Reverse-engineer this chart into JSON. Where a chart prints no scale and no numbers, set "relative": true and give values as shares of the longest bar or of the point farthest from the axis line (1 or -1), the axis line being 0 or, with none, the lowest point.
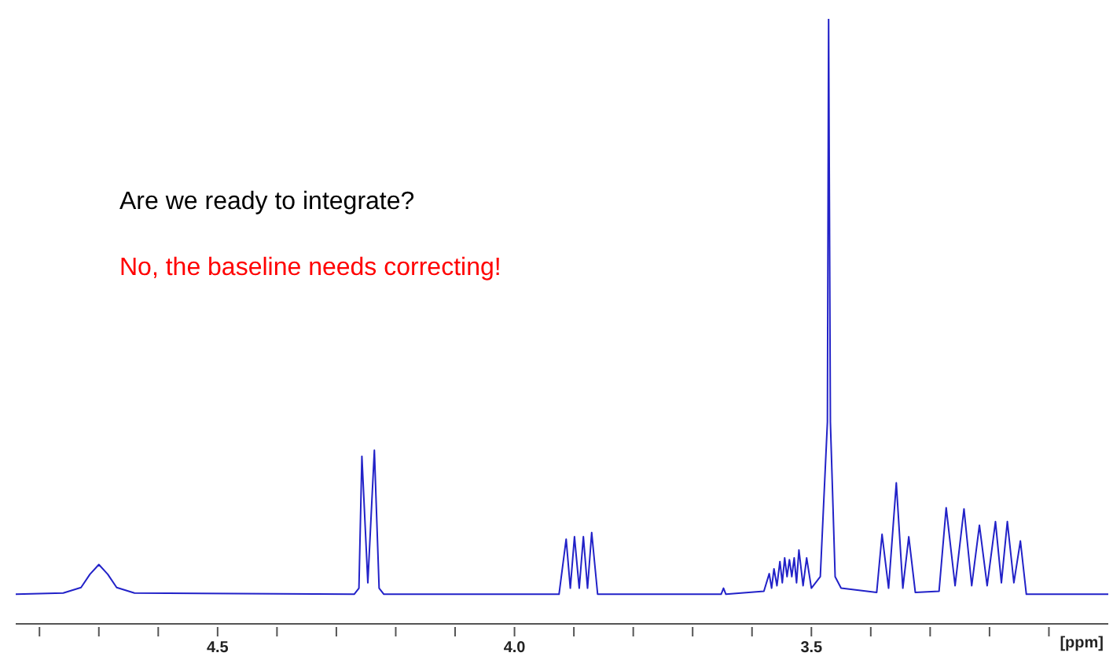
{
  "chart_data": {
    "type": "line",
    "relative": true,
    "xlabel": "[ppm]",
    "xlim": [
      4.84,
      3.0
    ],
    "xticks": [
      {
        "value": 4.8,
        "label": null
      },
      {
        "value": 4.7,
        "label": null
      },
      {
        "value": 4.6,
        "label": null
      },
      {
        "value": 4.5,
        "label": "4.5"
      },
      {
        "value": 4.4,
        "label": null
      },
      {
        "value": 4.3,
        "label": null
      },
      {
        "value": 4.2,
        "label": null
      },
      {
        "value": 4.1,
        "label": null
      },
      {
        "value": 4.0,
        "label": "4.0"
      },
      {
        "value": 3.9,
        "label": null
      },
      {
        "value": 3.8,
        "label": null
      },
      {
        "value": 3.7,
        "label": null
      },
      {
        "value": 3.6,
        "label": null
      },
      {
        "value": 3.5,
        "label": "3.5"
      },
      {
        "value": 3.4,
        "label": null
      },
      {
        "value": 3.3,
        "label": null
      },
      {
        "value": 3.2,
        "label": null
      },
      {
        "value": 3.1,
        "label": null
      }
    ],
    "annotations": [
      "Are we ready to integrate?",
      "No, the baseline needs correcting!"
    ],
    "grid": false,
    "legend": false,
    "marker": "none",
    "line_style": "solid",
    "series": [
      {
        "color": "#2222c8",
        "x": [
          4.84,
          4.76,
          4.73,
          4.715,
          4.7,
          4.685,
          4.67,
          4.64,
          4.27,
          4.262,
          4.257,
          4.247,
          4.236,
          4.228,
          4.22,
          3.925,
          3.913,
          3.906,
          3.899,
          3.891,
          3.884,
          3.877,
          3.87,
          3.86,
          3.652,
          3.648,
          3.644,
          3.58,
          3.571,
          3.567,
          3.563,
          3.558,
          3.553,
          3.549,
          3.545,
          3.541,
          3.537,
          3.533,
          3.529,
          3.525,
          3.521,
          3.514,
          3.508,
          3.5,
          3.485,
          3.473,
          3.471,
          3.468,
          3.46,
          3.45,
          3.39,
          3.381,
          3.37,
          3.357,
          3.346,
          3.336,
          3.325,
          3.285,
          3.273,
          3.258,
          3.243,
          3.23,
          3.217,
          3.204,
          3.19,
          3.18,
          3.17,
          3.159,
          3.148,
          3.138,
          3.0
        ],
        "values": [
          0.049,
          0.051,
          0.06,
          0.082,
          0.098,
          0.082,
          0.06,
          0.051,
          0.049,
          0.059,
          0.277,
          0.068,
          0.287,
          0.059,
          0.049,
          0.049,
          0.14,
          0.059,
          0.144,
          0.059,
          0.144,
          0.059,
          0.151,
          0.049,
          0.049,
          0.059,
          0.049,
          0.054,
          0.083,
          0.059,
          0.091,
          0.063,
          0.103,
          0.068,
          0.109,
          0.078,
          0.106,
          0.078,
          0.109,
          0.068,
          0.122,
          0.063,
          0.109,
          0.059,
          0.078,
          0.334,
          1,
          0.334,
          0.078,
          0.059,
          0.052,
          0.148,
          0.059,
          0.233,
          0.059,
          0.144,
          0.052,
          0.054,
          0.192,
          0.063,
          0.19,
          0.063,
          0.163,
          0.063,
          0.169,
          0.068,
          0.169,
          0.068,
          0.137,
          0.049,
          0.049
        ]
      }
    ]
  }
}
